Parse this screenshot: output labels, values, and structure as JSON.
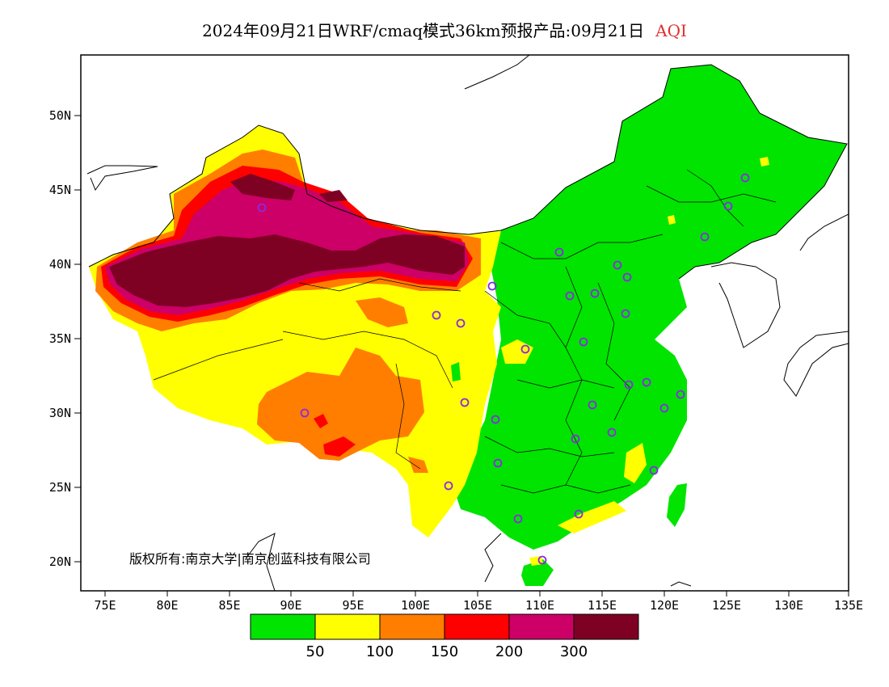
{
  "title": {
    "main": "2024年09月21日WRF/cmaq模式36km预报产品:09月21日",
    "variable": "AQI"
  },
  "copyright": "版权所有:南京大学|南京创蓝科技有限公司",
  "lat_labels": [
    "50N",
    "45N",
    "40N",
    "35N",
    "30N",
    "25N",
    "20N"
  ],
  "lon_labels": [
    "75E",
    "80E",
    "85E",
    "90E",
    "95E",
    "100E",
    "105E",
    "110E",
    "115E",
    "120E",
    "125E",
    "130E",
    "135E"
  ],
  "legend": {
    "colors": [
      "#00e400",
      "#ffff00",
      "#ff7e00",
      "#ff0000",
      "#cc0066",
      "#7e0023"
    ],
    "thresholds": [
      "50",
      "100",
      "150",
      "200",
      "300"
    ]
  },
  "colors": {
    "good": "#00e400",
    "moderate": "#ffff00",
    "sensitive": "#ff7e00",
    "unhealthy": "#ff0000",
    "very_unhealthy": "#cc0066",
    "hazardous": "#7e0023",
    "station_marker": "#8a2be2"
  }
}
